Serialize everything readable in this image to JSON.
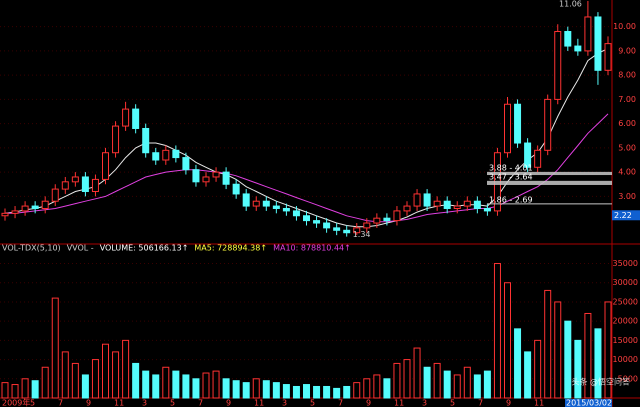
{
  "chart_data": {
    "type": "candlestick",
    "open": [
      2.2,
      2.3,
      2.4,
      2.6,
      2.5,
      2.8,
      3.3,
      3.6,
      3.8,
      3.2,
      3.7,
      4.8,
      5.9,
      6.6,
      5.8,
      4.8,
      4.5,
      4.9,
      4.6,
      4.1,
      3.6,
      3.8,
      4.0,
      3.5,
      3.1,
      2.6,
      2.8,
      2.6,
      2.5,
      2.4,
      2.2,
      2.0,
      1.9,
      1.7,
      1.6,
      1.5,
      1.7,
      1.9,
      2.1,
      2.0,
      2.4,
      2.6,
      3.1,
      2.6,
      2.8,
      2.5,
      2.6,
      2.8,
      2.5,
      2.4,
      4.8,
      6.8,
      5.2,
      4.2,
      4.9,
      7.0,
      9.8,
      9.2,
      9.0,
      10.4,
      8.2
    ],
    "high": [
      2.5,
      2.6,
      2.8,
      2.8,
      3.0,
      3.5,
      3.8,
      4.0,
      4.0,
      3.9,
      5.0,
      6.1,
      6.9,
      6.8,
      6.0,
      5.0,
      5.1,
      5.1,
      4.8,
      4.3,
      4.0,
      4.2,
      4.2,
      3.7,
      3.3,
      3.0,
      3.0,
      2.8,
      2.7,
      2.6,
      2.4,
      2.2,
      2.1,
      1.9,
      1.8,
      1.9,
      2.1,
      2.3,
      2.3,
      2.6,
      2.8,
      3.3,
      3.3,
      3.0,
      3.0,
      2.8,
      3.0,
      3.0,
      2.7,
      5.0,
      7.1,
      7.0,
      5.4,
      5.1,
      7.2,
      10.1,
      10.0,
      9.5,
      11.06,
      10.6,
      9.6
    ],
    "low": [
      2.0,
      2.1,
      2.2,
      2.3,
      2.3,
      2.6,
      3.1,
      3.4,
      3.0,
      3.0,
      3.5,
      4.6,
      5.7,
      5.6,
      4.6,
      4.3,
      4.3,
      4.4,
      3.9,
      3.4,
      3.4,
      3.6,
      3.3,
      2.9,
      2.4,
      2.4,
      2.4,
      2.3,
      2.2,
      2.0,
      1.8,
      1.7,
      1.5,
      1.4,
      1.34,
      1.4,
      1.5,
      1.7,
      1.8,
      1.8,
      2.2,
      2.4,
      2.4,
      2.4,
      2.3,
      2.3,
      2.4,
      2.3,
      2.2,
      2.2,
      4.6,
      5.0,
      4.0,
      4.0,
      4.7,
      6.8,
      9.0,
      8.8,
      8.8,
      7.6,
      8.0
    ],
    "close": [
      2.3,
      2.4,
      2.6,
      2.5,
      2.8,
      3.3,
      3.6,
      3.8,
      3.2,
      3.7,
      4.8,
      5.9,
      6.6,
      5.8,
      4.8,
      4.5,
      4.9,
      4.6,
      4.1,
      3.6,
      3.8,
      4.0,
      3.5,
      3.1,
      2.6,
      2.8,
      2.6,
      2.5,
      2.4,
      2.2,
      2.0,
      1.9,
      1.7,
      1.6,
      1.5,
      1.7,
      1.9,
      2.1,
      2.0,
      2.4,
      2.6,
      3.1,
      2.6,
      2.8,
      2.5,
      2.6,
      2.8,
      2.5,
      2.4,
      4.8,
      6.8,
      5.2,
      4.2,
      4.9,
      7.0,
      9.8,
      9.2,
      9.0,
      10.4,
      8.2,
      9.3
    ],
    "volume": [
      4000,
      3500,
      5000,
      4500,
      8000,
      26000,
      12000,
      9000,
      6000,
      10000,
      14000,
      12000,
      15000,
      9000,
      7000,
      6000,
      8000,
      7000,
      6000,
      5000,
      6500,
      7000,
      5000,
      4500,
      4000,
      5000,
      4500,
      4000,
      3500,
      3000,
      3500,
      3000,
      3000,
      2500,
      3000,
      4000,
      5000,
      6000,
      5000,
      9000,
      10000,
      13000,
      8000,
      9000,
      7000,
      6000,
      8000,
      6000,
      7000,
      35000,
      30000,
      18000,
      12000,
      15000,
      28000,
      25000,
      20000,
      15000,
      22000,
      18000,
      25000
    ],
    "lines": [
      {
        "color": "#e8e8e8",
        "values": [
          2.3,
          2.35,
          2.45,
          2.5,
          2.6,
          2.8,
          3.0,
          3.2,
          3.3,
          3.4,
          3.7,
          4.1,
          4.6,
          5.0,
          5.2,
          5.2,
          5.1,
          4.9,
          4.7,
          4.4,
          4.2,
          4.0,
          3.9,
          3.7,
          3.4,
          3.2,
          3.0,
          2.8,
          2.65,
          2.5,
          2.35,
          2.2,
          2.05,
          1.9,
          1.8,
          1.75,
          1.75,
          1.8,
          1.9,
          2.0,
          2.15,
          2.35,
          2.5,
          2.6,
          2.65,
          2.6,
          2.65,
          2.65,
          2.6,
          3.0,
          3.6,
          4.1,
          4.5,
          4.8,
          5.4,
          6.3,
          7.1,
          7.8,
          8.6,
          8.9,
          9.1
        ]
      },
      {
        "color": "#e040e0",
        "values": [
          2.3,
          2.3,
          2.35,
          2.4,
          2.45,
          2.5,
          2.6,
          2.7,
          2.8,
          2.9,
          3.0,
          3.2,
          3.4,
          3.6,
          3.8,
          3.9,
          4.0,
          4.05,
          4.1,
          4.1,
          4.05,
          4.0,
          3.95,
          3.85,
          3.7,
          3.55,
          3.4,
          3.25,
          3.1,
          2.95,
          2.8,
          2.65,
          2.5,
          2.35,
          2.2,
          2.1,
          2.0,
          1.95,
          1.95,
          2.0,
          2.05,
          2.15,
          2.25,
          2.3,
          2.35,
          2.4,
          2.45,
          2.5,
          2.5,
          2.6,
          2.8,
          3.0,
          3.2,
          3.4,
          3.7,
          4.1,
          4.6,
          5.1,
          5.6,
          6.0,
          6.4
        ]
      }
    ],
    "up_color": "#ff3232",
    "down_color": "#54fcfc",
    "ylim": [
      1.2,
      11.1
    ],
    "yticks": [
      {
        "value": 3,
        "label": "3.00"
      },
      {
        "value": 4,
        "label": "4.00"
      },
      {
        "value": 5,
        "label": "5.00"
      },
      {
        "value": 6,
        "label": "6.00"
      },
      {
        "value": 7,
        "label": "7.00"
      },
      {
        "value": 8,
        "label": "8.00"
      },
      {
        "value": 9,
        "label": "9.00"
      },
      {
        "value": 10,
        "label": "10.00"
      }
    ],
    "vol_ylim": [
      0,
      38000
    ],
    "vol_yticks": [
      5000,
      10000,
      15000,
      20000,
      25000,
      30000,
      35000
    ],
    "high_label": {
      "value": 11.06,
      "label": "11.06"
    },
    "low_label": {
      "value": 1.34,
      "label": "1.34"
    },
    "last_price": 2.22,
    "zones": [
      {
        "label": "3.88 - 4.01",
        "low": 3.88,
        "high": 4.01
      },
      {
        "label": "3.47 - 3.64",
        "low": 3.47,
        "high": 3.64
      },
      {
        "label": "1.86 - 2.69",
        "low": 1.86,
        "high": 2.69
      }
    ],
    "indicator": [
      "VOL-TDX(5,10)",
      "VVOL -",
      "VOLUME: 506166.13↑",
      "MA5: 728894.38↑",
      "MA10: 878810.44↑"
    ],
    "x_labels": [
      "2009年",
      "5",
      "7",
      "9",
      "11",
      "3",
      "5",
      "7",
      "9",
      "11",
      "3",
      "5",
      "7",
      "9",
      "11",
      "3",
      "5",
      "7",
      "9",
      "11"
    ],
    "end_date": "2015/03/02",
    "watermark": "头条 @悟空问答"
  }
}
